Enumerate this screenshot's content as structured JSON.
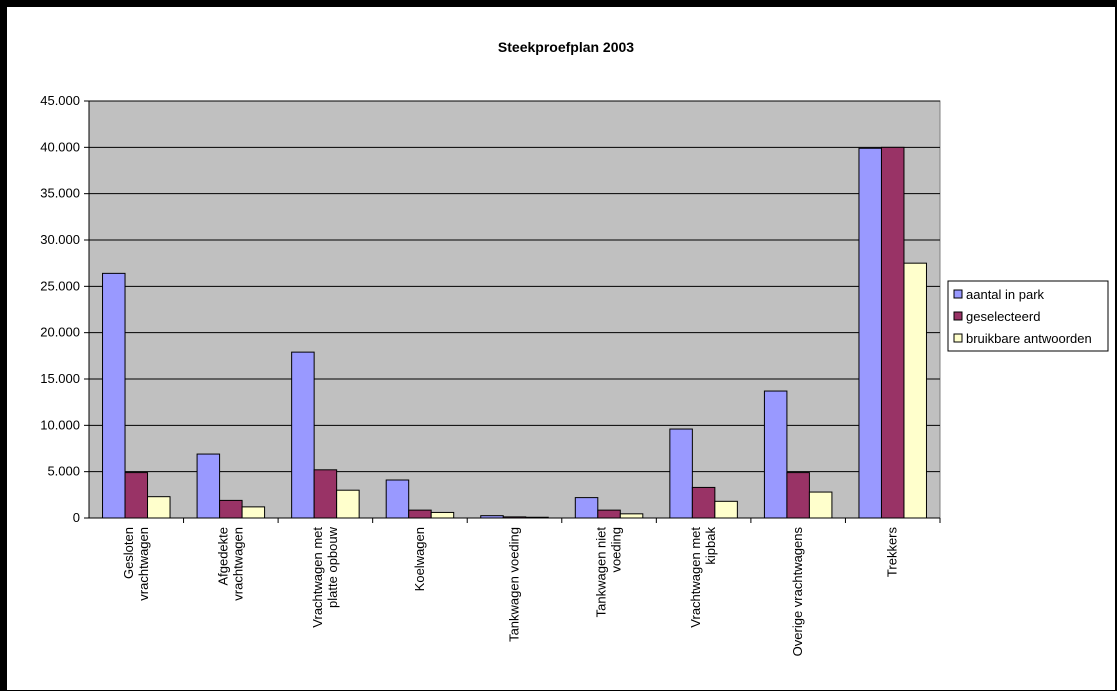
{
  "chart_data": {
    "type": "bar",
    "title": "Steekproefplan 2003",
    "xlabel": "",
    "ylabel": "",
    "ylim": [
      0,
      45000
    ],
    "yticks": [
      "0",
      "5.000",
      "10.000",
      "15.000",
      "20.000",
      "25.000",
      "30.000",
      "35.000",
      "40.000",
      "45.000"
    ],
    "grid": true,
    "legend_position": "right",
    "categories": [
      [
        "Gesloten",
        "vrachtwagen"
      ],
      [
        "Afgedekte",
        "vrachtwagen"
      ],
      [
        "Vrachtwagen met",
        "platte opbouw"
      ],
      [
        "Koelwagen"
      ],
      [
        "Tankwagen voeding"
      ],
      [
        "Tankwagen niet",
        "voeding"
      ],
      [
        "Vrachtwagen met",
        "kipbak"
      ],
      [
        "Overige vrachtwagens"
      ],
      [
        "Trekkers"
      ]
    ],
    "series": [
      {
        "name": "aantal in park",
        "color": "#9999ff",
        "values": [
          26400,
          6900,
          17900,
          4100,
          250,
          2200,
          9600,
          13700,
          39900
        ]
      },
      {
        "name": "geselecteerd",
        "color": "#993366",
        "values": [
          4900,
          1900,
          5200,
          850,
          120,
          850,
          3300,
          4900,
          40000
        ]
      },
      {
        "name": "bruikbare antwoorden",
        "color": "#ffffcc",
        "values": [
          2300,
          1200,
          3000,
          600,
          80,
          450,
          1800,
          2800,
          27500
        ]
      }
    ],
    "plot_background": "#c0c0c0"
  }
}
